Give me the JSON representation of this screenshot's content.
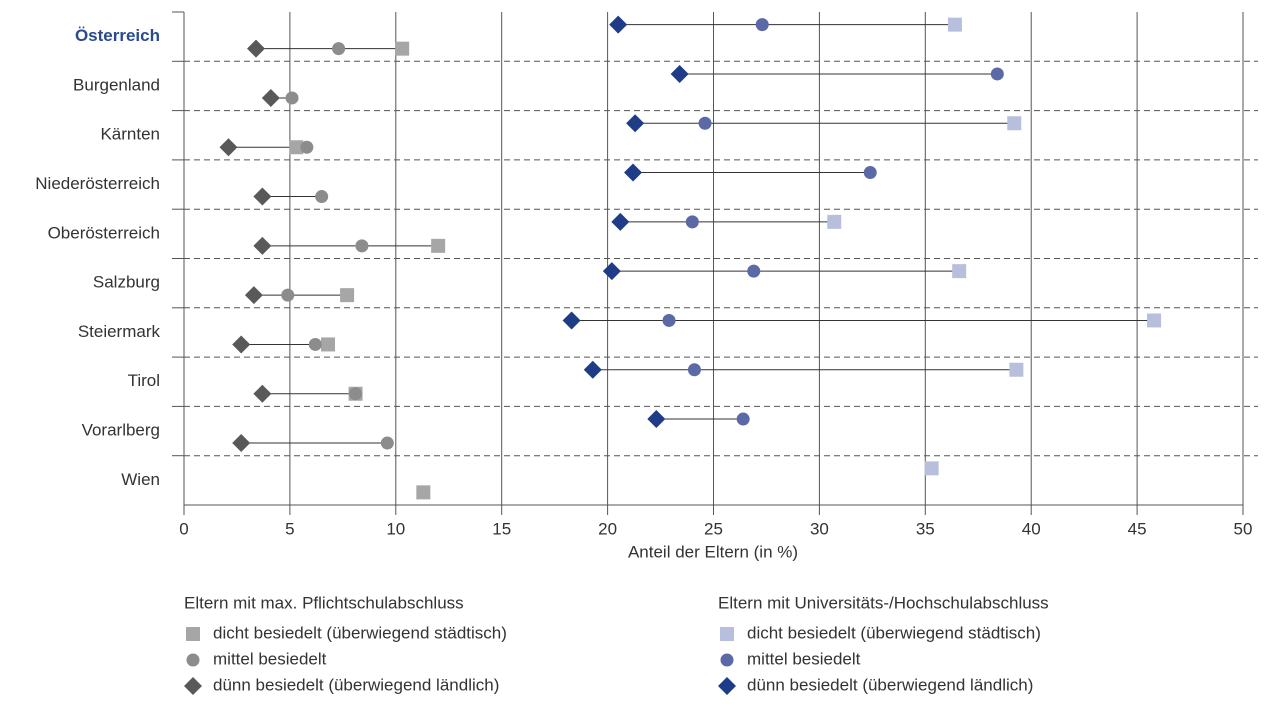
{
  "chart_data": {
    "type": "dumbbell",
    "x_label": "Anteil der Eltern (in %)",
    "xlim": [
      0,
      50
    ],
    "xticks": [
      0,
      5,
      10,
      15,
      20,
      25,
      30,
      35,
      40,
      45,
      50
    ],
    "grid": true,
    "categories": [
      "Österreich",
      "Burgenland",
      "Kärnten",
      "Niederösterreich",
      "Oberösterreich",
      "Salzburg",
      "Steiermark",
      "Tirol",
      "Vorarlberg",
      "Wien"
    ],
    "groups": [
      {
        "name": "Eltern mit max. Pflichtschulabschluss",
        "row": "lower",
        "series": [
          {
            "name": "dicht besiedelt (überwiegend städtisch)",
            "marker": "square",
            "color": "#a6a6a6",
            "values": [
              10.3,
              null,
              5.3,
              null,
              12.0,
              7.7,
              6.8,
              8.1,
              null,
              11.3
            ]
          },
          {
            "name": "mittel besiedelt",
            "marker": "circle",
            "color": "#8c8c8c",
            "values": [
              7.3,
              5.1,
              5.8,
              6.5,
              8.4,
              4.9,
              6.2,
              8.1,
              9.6,
              null
            ]
          },
          {
            "name": "dünn besiedelt (überwiegend ländlich)",
            "marker": "diamond",
            "color": "#595959",
            "values": [
              3.4,
              4.1,
              2.1,
              3.7,
              3.7,
              3.3,
              2.7,
              3.7,
              2.7,
              null
            ]
          }
        ]
      },
      {
        "name": "Eltern mit Universitäts-/Hochschulabschluss",
        "row": "upper",
        "series": [
          {
            "name": "dicht besiedelt (überwiegend städtisch)",
            "marker": "square",
            "color": "#b8bfdc",
            "values": [
              36.4,
              null,
              39.2,
              null,
              30.7,
              36.6,
              45.8,
              39.3,
              null,
              35.3
            ]
          },
          {
            "name": "mittel besiedelt",
            "marker": "circle",
            "color": "#5b6aa6",
            "values": [
              27.3,
              38.4,
              24.6,
              32.4,
              24.0,
              26.9,
              22.9,
              24.1,
              26.4,
              null
            ]
          },
          {
            "name": "dünn besiedelt (überwiegend ländlich)",
            "marker": "diamond",
            "color": "#1f3c88",
            "values": [
              20.5,
              23.4,
              21.3,
              21.2,
              20.6,
              20.2,
              18.3,
              19.3,
              22.3,
              null
            ]
          }
        ]
      }
    ]
  }
}
